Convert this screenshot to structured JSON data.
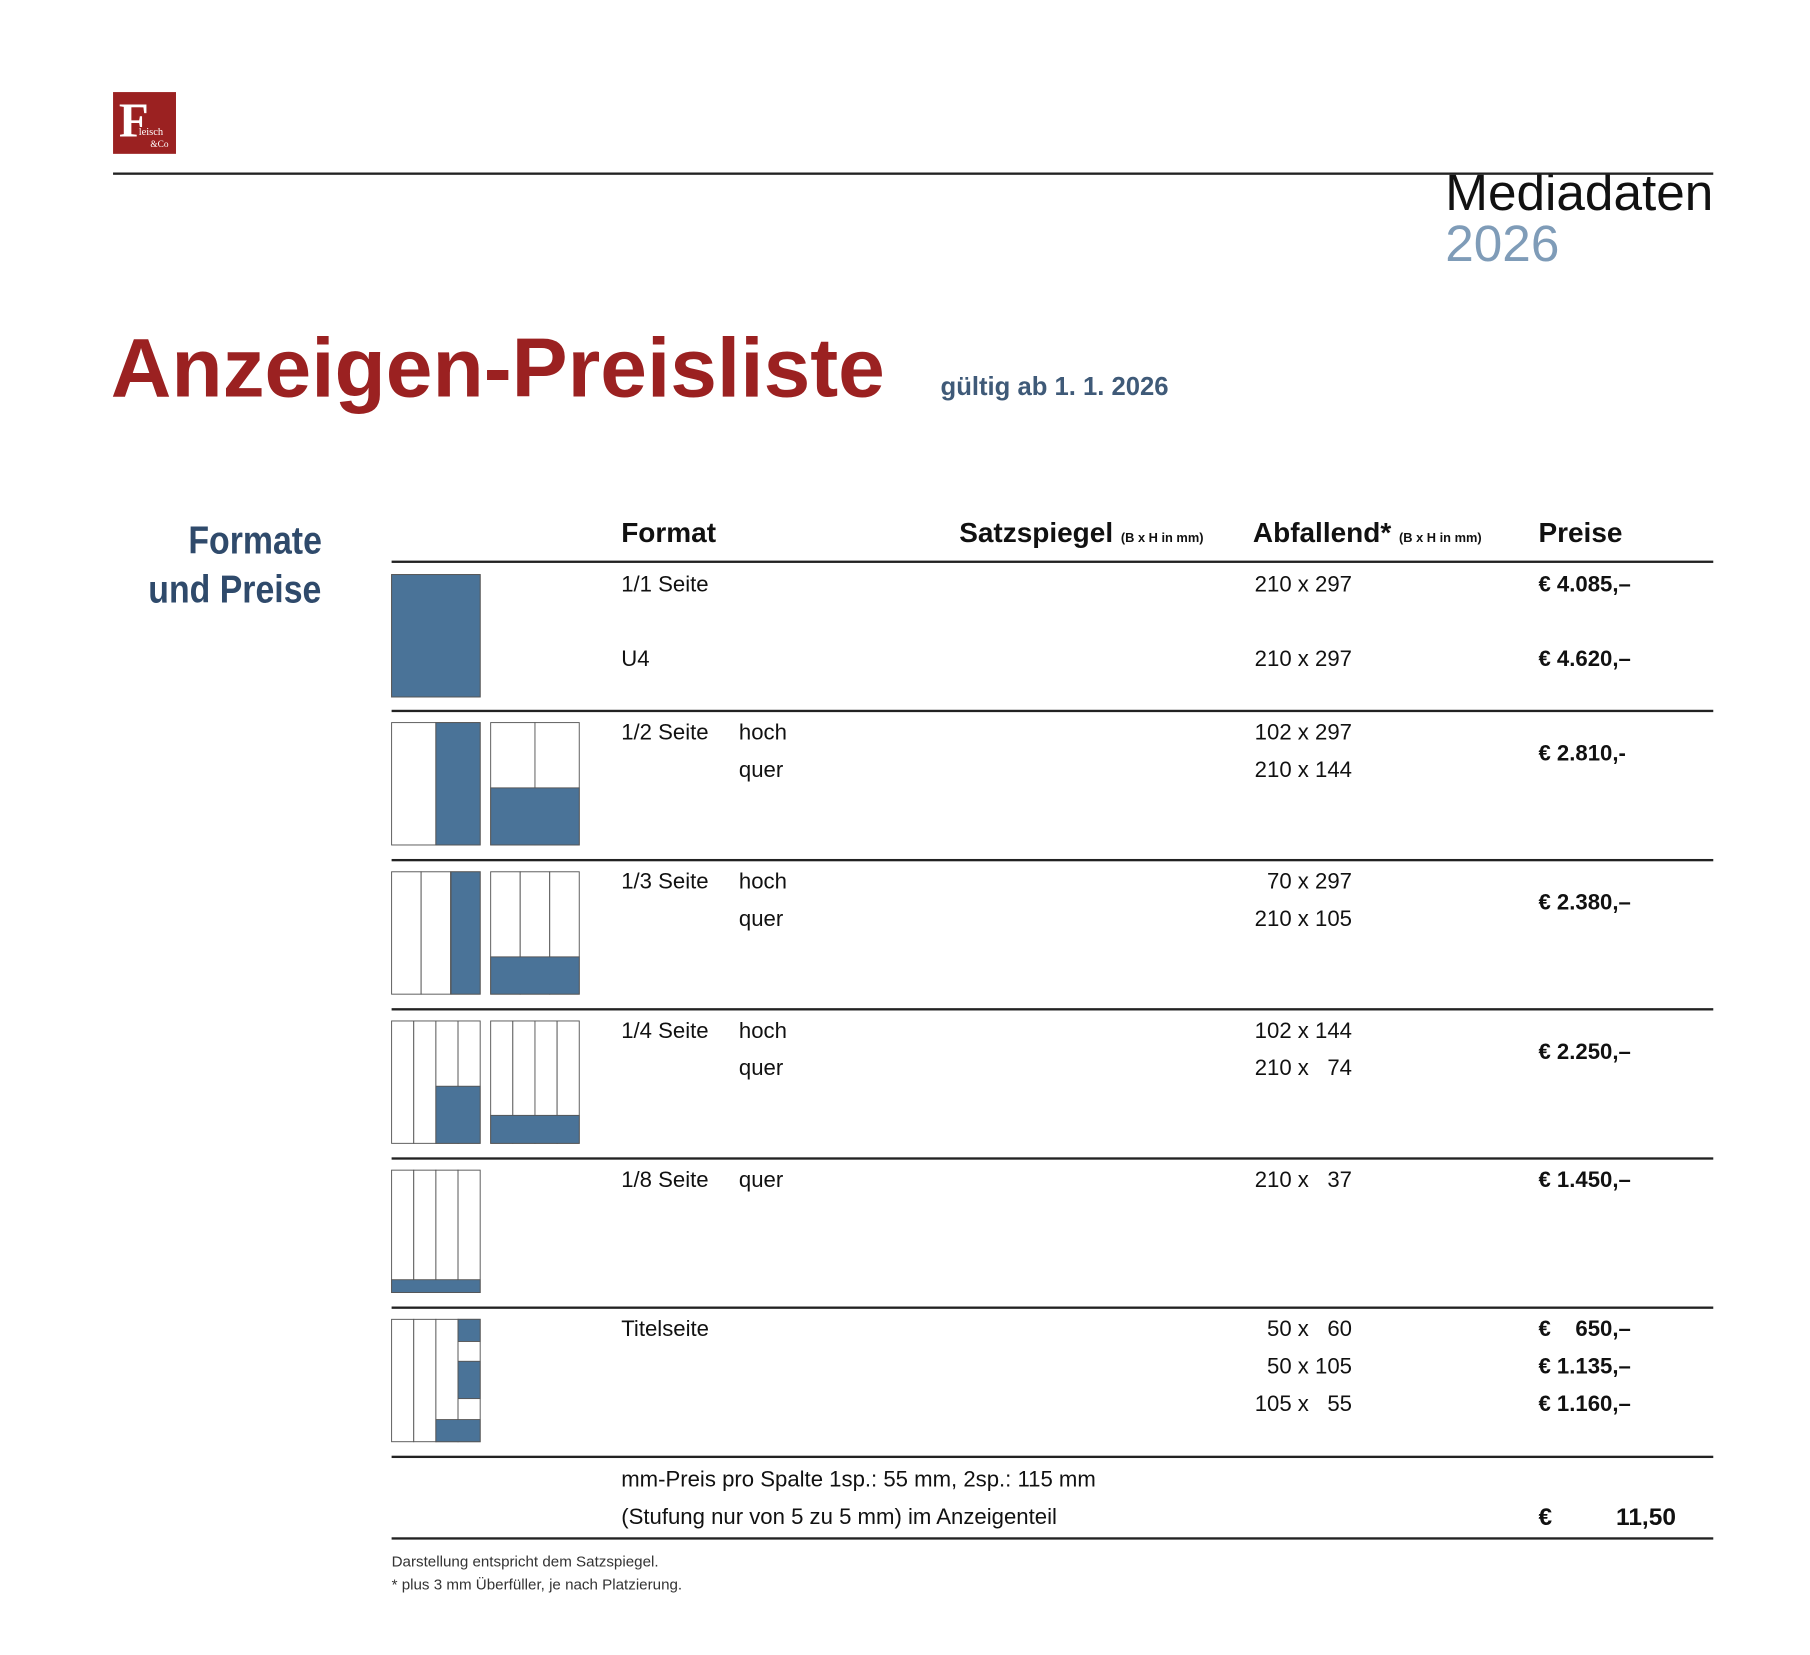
{
  "header": {
    "logo": {
      "letter": "F",
      "line1": "leisch",
      "line2": "&Co"
    },
    "title": "Mediadaten",
    "year": "2026"
  },
  "title": "Anzeigen-Preisliste",
  "subtitle": "gültig ab 1. 1. 2026",
  "section": {
    "line1": "Formate",
    "line2": "und Preise"
  },
  "table": {
    "header": {
      "format": "Format",
      "satzspiegel": "Satzspiegel",
      "satzspiegel_unit": "(B x H in mm)",
      "abfallend": "Abfallend*",
      "abfallend_unit": "(B x H in mm)",
      "preise": "Preise"
    },
    "rows": [
      {
        "items": [
          {
            "format": "1/1 Seite",
            "dims": "210 x 297",
            "price": "€ 4.085,–"
          },
          {
            "format": "U4",
            "dims": "210 x 297",
            "price": "€ 4.620,–"
          }
        ]
      },
      {
        "items": [
          {
            "format": "1/2 Seite",
            "variant": "hoch",
            "dims": "102 x 297"
          },
          {
            "variant": "quer",
            "dims": "210 x 144"
          }
        ],
        "price": "€ 2.810,-"
      },
      {
        "items": [
          {
            "format": "1/3 Seite",
            "variant": "hoch",
            "dims": "70 x 297"
          },
          {
            "variant": "quer",
            "dims": "210 x 105"
          }
        ],
        "price": "€ 2.380,–"
      },
      {
        "items": [
          {
            "format": "1/4 Seite",
            "variant": "hoch",
            "dims": "102 x 144"
          },
          {
            "variant": "quer",
            "dims": "210 x   74"
          }
        ],
        "price": "€ 2.250,–"
      },
      {
        "items": [
          {
            "format": "1/8 Seite",
            "variant": "quer",
            "dims": "210 x   37",
            "price": "€ 1.450,–"
          }
        ]
      },
      {
        "items": [
          {
            "format": "Titelseite",
            "dims": "50 x   60",
            "price": "€    650,–"
          },
          {
            "dims": "50 x 105",
            "price": "€ 1.135,–"
          },
          {
            "dims": "105 x   55",
            "price": "€ 1.160,–"
          }
        ]
      }
    ],
    "mm_price": {
      "line1": "mm-Preis pro Spalte 1sp.: 55 mm, 2sp.: 115 mm",
      "line2": "(Stufung nur von 5 zu 5 mm) im Anzeigenteil",
      "currency": "€",
      "value": "11,50"
    }
  },
  "footnotes": [
    "Darstellung entspricht dem Satzspiegel.",
    "* plus 3 mm Überfüller, je nach Platzierung."
  ]
}
